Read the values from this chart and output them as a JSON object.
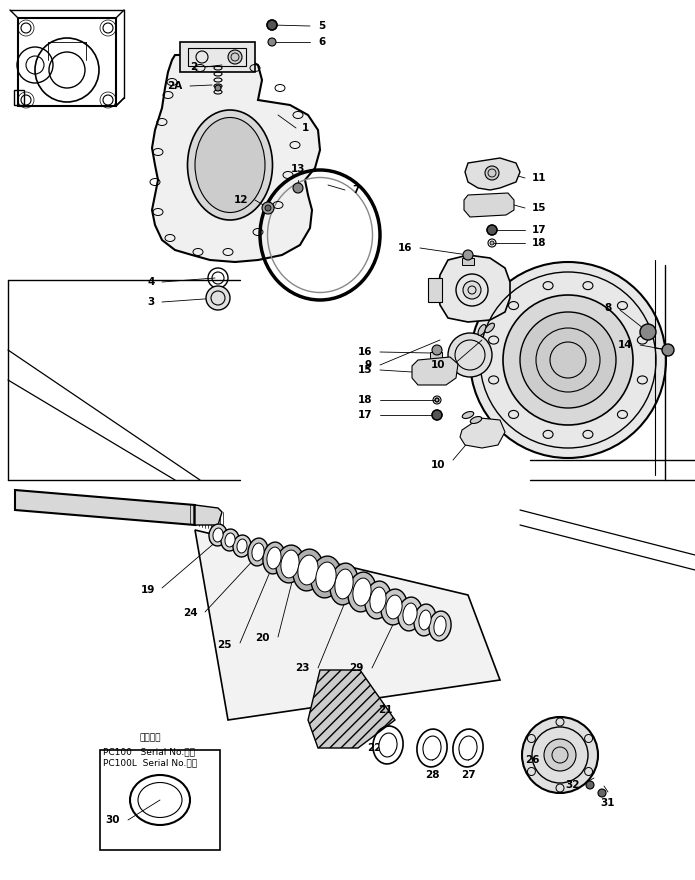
{
  "background_color": "#ffffff",
  "line_color": "#000000",
  "inset_text_line1": "適用号機",
  "inset_text_line2": "PC100   Serial No.・～",
  "inset_text_line3": "PC100L  Serial No.・～",
  "fig_width": 6.95,
  "fig_height": 8.8,
  "dpi": 100
}
